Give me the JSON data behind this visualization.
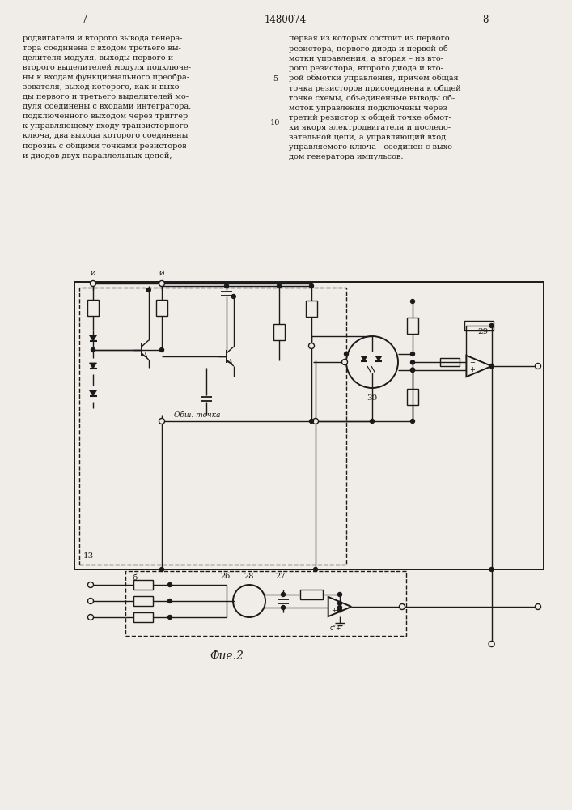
{
  "bg_color": "#f0ede8",
  "lc": "#1a1a1a",
  "title": "1480074",
  "page_left": "7",
  "page_right": "8",
  "caption": "Фие.2",
  "text_left": "родвигателя и второго вывода генера-\nтора соединена с входом третьего вы-\nделителя модуля, выходы первого и\nвторого выделителей модуля подключе-\nны к входам функционального преобра-\nзователя, выход которого, как и выхо-\nды первого и третьего выделителей мо-\nдуля соединены с входами интегратора,\nподключенного выходом через триггер\nк управляющему входу транзисторного\nключа, два выхода которого соединены\nпорознь с общими точками резисторов\nи диодов двух параллельных цепей,",
  "text_right": "первая из которых состоит из первого\nрезистора, первого диода и первой об-\nмотки управления, а вторая – из вто-\nрого резистора, второго диода и вто-\nрой обмотки управления, причем общая\nточка резисторов присоединена к общей\nточке схемы, объединенные выводы об-\nмоток управления подключены через\nтретий резистор к общей точке обмот-\nки якоря электродвигателя и последо-\nвательной цепи, а управляющий вход\nуправляемого ключа   соединен с выхо-\nдом генератора импульсов."
}
